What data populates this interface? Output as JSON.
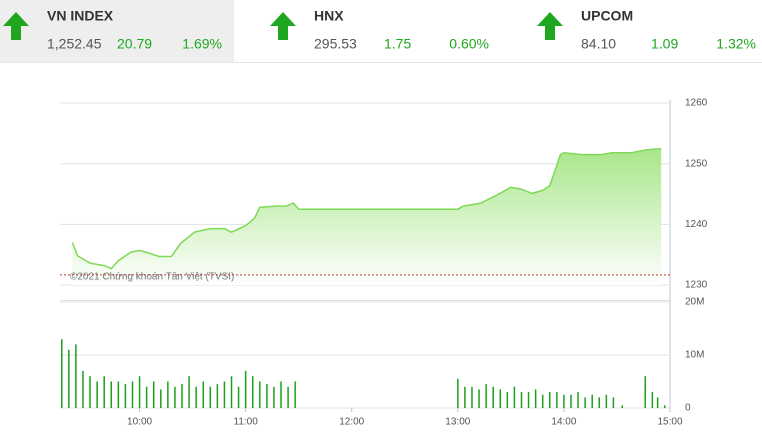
{
  "indices": [
    {
      "name": "VN INDEX",
      "value": "1,252.45",
      "change": "20.79",
      "percent": "1.69%"
    },
    {
      "name": "HNX",
      "value": "295.53",
      "change": "1.75",
      "percent": "0.60%"
    },
    {
      "name": "UPCOM",
      "value": "84.10",
      "change": "1.09",
      "percent": "1.32%"
    }
  ],
  "watermark": "©2021 Chứng khoán Tân Việt (TVSI)",
  "chart_data": [
    {
      "type": "line",
      "color": "#7ed957",
      "xlim": [
        "09:15",
        "15:00"
      ],
      "ylim": [
        1230,
        1260.5
      ],
      "yticks": [
        1230,
        1240,
        1250,
        1260
      ],
      "grid": true,
      "reference_line": 1231.66,
      "x": [
        "09:22",
        "09:25",
        "09:32",
        "09:40",
        "09:44",
        "09:48",
        "09:55",
        "10:00",
        "10:06",
        "10:11",
        "10:18",
        "10:23",
        "10:31",
        "10:40",
        "10:48",
        "10:52",
        "11:00",
        "11:05",
        "11:08",
        "11:17",
        "11:23",
        "11:27",
        "11:30",
        "11:32",
        "13:00",
        "13:03",
        "13:13",
        "13:22",
        "13:30",
        "13:36",
        "13:42",
        "13:48",
        "13:52",
        "13:55",
        "13:58",
        "14:00",
        "14:10",
        "14:21",
        "14:27",
        "14:38",
        "14:47",
        "14:55"
      ],
      "values": [
        1237.0,
        1234.8,
        1233.6,
        1233.2,
        1232.7,
        1234.0,
        1235.4,
        1235.7,
        1235.2,
        1234.7,
        1234.7,
        1236.8,
        1238.7,
        1239.3,
        1239.3,
        1238.7,
        1239.8,
        1241.0,
        1242.8,
        1243.0,
        1243.0,
        1243.5,
        1242.5,
        1242.5,
        1242.5,
        1243.0,
        1243.5,
        1244.8,
        1246.1,
        1245.8,
        1245.1,
        1245.6,
        1246.4,
        1248.9,
        1251.5,
        1251.8,
        1251.5,
        1251.5,
        1251.8,
        1251.8,
        1252.3,
        1252.45
      ]
    },
    {
      "type": "bar",
      "color": "#1e9e1e",
      "xlim": [
        "09:15",
        "15:00"
      ],
      "ylim": [
        0,
        20000000
      ],
      "yticks": [
        0,
        {
          "value": 10000000,
          "label": "10M"
        },
        {
          "value": 20000000,
          "label": "20M"
        }
      ],
      "grid": true,
      "xticks": [
        "10:00",
        "11:00",
        "12:00",
        "13:00",
        "14:00",
        "15:00"
      ],
      "x": [
        "09:16",
        "09:20",
        "09:24",
        "09:28",
        "09:32",
        "09:36",
        "09:40",
        "09:44",
        "09:48",
        "09:52",
        "09:56",
        "10:00",
        "10:04",
        "10:08",
        "10:12",
        "10:16",
        "10:20",
        "10:24",
        "10:28",
        "10:32",
        "10:36",
        "10:40",
        "10:44",
        "10:48",
        "10:52",
        "10:56",
        "11:00",
        "11:04",
        "11:08",
        "11:12",
        "11:16",
        "11:20",
        "11:24",
        "11:28",
        "13:00",
        "13:04",
        "13:08",
        "13:12",
        "13:16",
        "13:20",
        "13:24",
        "13:28",
        "13:32",
        "13:36",
        "13:40",
        "13:44",
        "13:48",
        "13:52",
        "13:56",
        "14:00",
        "14:04",
        "14:08",
        "14:12",
        "14:16",
        "14:20",
        "14:24",
        "14:28",
        "14:33",
        "14:46",
        "14:50",
        "14:53",
        "14:57"
      ],
      "values": [
        13000000,
        11000000,
        12000000,
        7000000,
        6000000,
        5000000,
        6000000,
        5000000,
        5000000,
        4500000,
        5000000,
        6000000,
        4000000,
        5000000,
        3500000,
        5000000,
        4000000,
        4500000,
        6000000,
        4000000,
        5000000,
        4000000,
        4500000,
        5000000,
        6000000,
        4000000,
        7000000,
        6000000,
        5000000,
        4500000,
        4000000,
        5000000,
        4000000,
        5000000,
        5500000,
        4000000,
        4000000,
        3500000,
        4500000,
        4000000,
        3500000,
        3000000,
        4000000,
        3000000,
        3000000,
        3500000,
        2500000,
        3000000,
        3000000,
        2500000,
        2500000,
        3000000,
        2000000,
        2500000,
        2000000,
        2500000,
        2000000,
        500000,
        6000000,
        3000000,
        2000000,
        500000
      ]
    }
  ]
}
